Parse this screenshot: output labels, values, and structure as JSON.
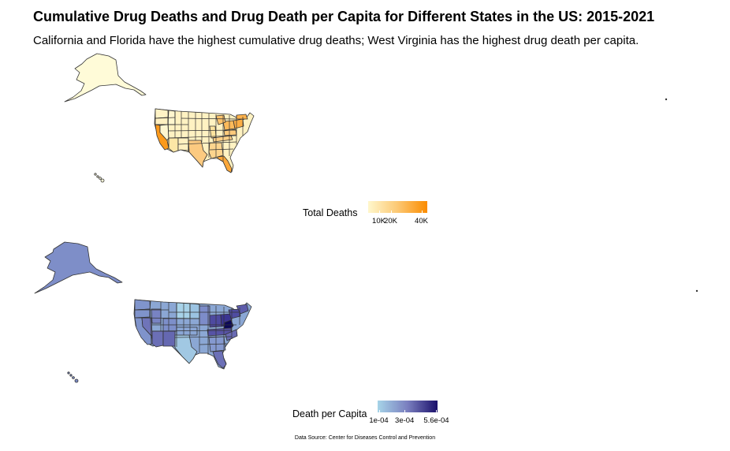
{
  "title": "Cumulative Drug Deaths and Drug Death per Capita for Different States in the US: 2015-2021",
  "subtitle": "California and Florida have the highest cumulative drug deaths; West Virginia has the highest drug death per capita.",
  "caption": "Data Source: Center for Diseases Control and Prevention",
  "map_top": {
    "legend_title": "Total Deaths",
    "color_low": "#fff7cc",
    "color_mid": "#fcc873",
    "color_high": "#fb8c00",
    "ticks": [
      {
        "label": "10K",
        "frac": 0.18
      },
      {
        "label": "20K",
        "frac": 0.38
      },
      {
        "label": "40K",
        "frac": 0.9
      }
    ]
  },
  "map_bottom": {
    "legend_title": "Death per Capita",
    "color_low": "#a6d4e8",
    "color_mid": "#7a7fbf",
    "color_high": "#1a0f6b",
    "ticks": [
      {
        "label": "1e-04",
        "frac": 0.02
      },
      {
        "label": "3e-04",
        "frac": 0.45
      },
      {
        "label": "5.6e-04",
        "frac": 0.98
      }
    ]
  }
}
